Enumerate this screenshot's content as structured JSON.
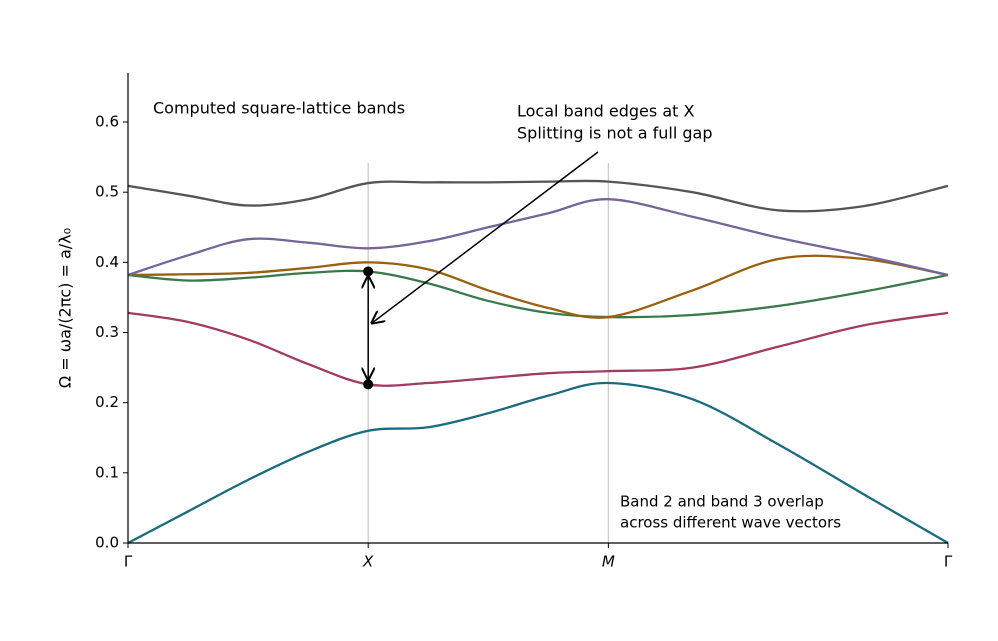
{
  "chart_data": {
    "type": "line",
    "title": "Computed square-lattice bands",
    "y_label": "Ω = ωa/(2πc) = a/λ₀",
    "annotations": [
      [
        "Local band edges at X",
        "Splitting is not a full gap"
      ],
      [
        "Band 2 and band 3 overlap",
        "across different wave vectors"
      ]
    ],
    "x": [
      0,
      0.25,
      0.5,
      0.75,
      1,
      1.25,
      1.5,
      1.75,
      2,
      2.35,
      2.71,
      3.06,
      3.414
    ],
    "xlim": [
      0,
      3.414
    ],
    "xticks": [
      {
        "value": 0,
        "label": "Γ"
      },
      {
        "value": 1,
        "label": "X"
      },
      {
        "value": 2,
        "label": "M"
      },
      {
        "value": 3.414,
        "label": "Γ"
      }
    ],
    "ylim": [
      0,
      0.67
    ],
    "yticks": [
      {
        "value": 0,
        "label": "0.0"
      },
      0.1,
      0.2,
      0.3,
      0.4,
      0.5,
      0.6
    ],
    "series": [
      {
        "color": "#1b6b80",
        "values": [
          0,
          0.045,
          0.09,
          0.13,
          0.16,
          0.165,
          0.185,
          0.21,
          0.228,
          0.205,
          0.14,
          0.07,
          0
        ]
      },
      {
        "color": "#a23b62",
        "values": [
          0.328,
          0.315,
          0.29,
          0.255,
          0.226,
          0.228,
          0.235,
          0.242,
          0.245,
          0.25,
          0.28,
          0.31,
          0.328
        ]
      },
      {
        "color": "#3a7a4a",
        "values": [
          0.382,
          0.374,
          0.378,
          0.385,
          0.387,
          0.37,
          0.345,
          0.328,
          0.322,
          0.325,
          0.338,
          0.358,
          0.382
        ]
      },
      {
        "color": "#9a6010",
        "values": [
          0.382,
          0.383,
          0.385,
          0.392,
          0.4,
          0.39,
          0.36,
          0.335,
          0.322,
          0.36,
          0.405,
          0.405,
          0.382
        ]
      },
      {
        "color": "#74659a",
        "values": [
          0.382,
          0.41,
          0.433,
          0.428,
          0.42,
          0.43,
          0.45,
          0.47,
          0.49,
          0.465,
          0.435,
          0.41,
          0.382
        ]
      },
      {
        "color": "#555555",
        "values": [
          0.509,
          0.495,
          0.481,
          0.49,
          0.513,
          0.514,
          0.514,
          0.515,
          0.515,
          0.5,
          0.474,
          0.48,
          0.509
        ]
      }
    ]
  }
}
